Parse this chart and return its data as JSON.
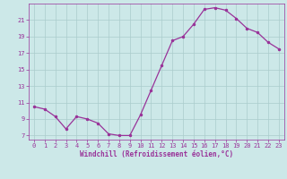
{
  "x": [
    0,
    1,
    2,
    3,
    4,
    5,
    6,
    7,
    8,
    9,
    10,
    11,
    12,
    13,
    14,
    15,
    16,
    17,
    18,
    19,
    20,
    21,
    22,
    23
  ],
  "y": [
    10.5,
    10.2,
    9.3,
    7.8,
    9.3,
    9.0,
    8.5,
    7.2,
    7.0,
    7.0,
    9.5,
    12.5,
    15.5,
    18.5,
    19.0,
    20.5,
    22.3,
    22.5,
    22.2,
    21.2,
    20.0,
    19.5,
    18.3,
    17.5
  ],
  "line_color": "#993399",
  "marker": ".",
  "bg_color": "#cce8e8",
  "grid_color": "#aacccc",
  "xlabel": "Windchill (Refroidissement éolien,°C)",
  "xlim": [
    -0.5,
    23.5
  ],
  "ylim": [
    6.5,
    23.0
  ],
  "yticks": [
    7,
    9,
    11,
    13,
    15,
    17,
    19,
    21
  ],
  "xticks": [
    0,
    1,
    2,
    3,
    4,
    5,
    6,
    7,
    8,
    9,
    10,
    11,
    12,
    13,
    14,
    15,
    16,
    17,
    18,
    19,
    20,
    21,
    22,
    23
  ],
  "font_color": "#993399",
  "font_family": "monospace",
  "tick_fontsize": 5.0,
  "xlabel_fontsize": 5.5
}
